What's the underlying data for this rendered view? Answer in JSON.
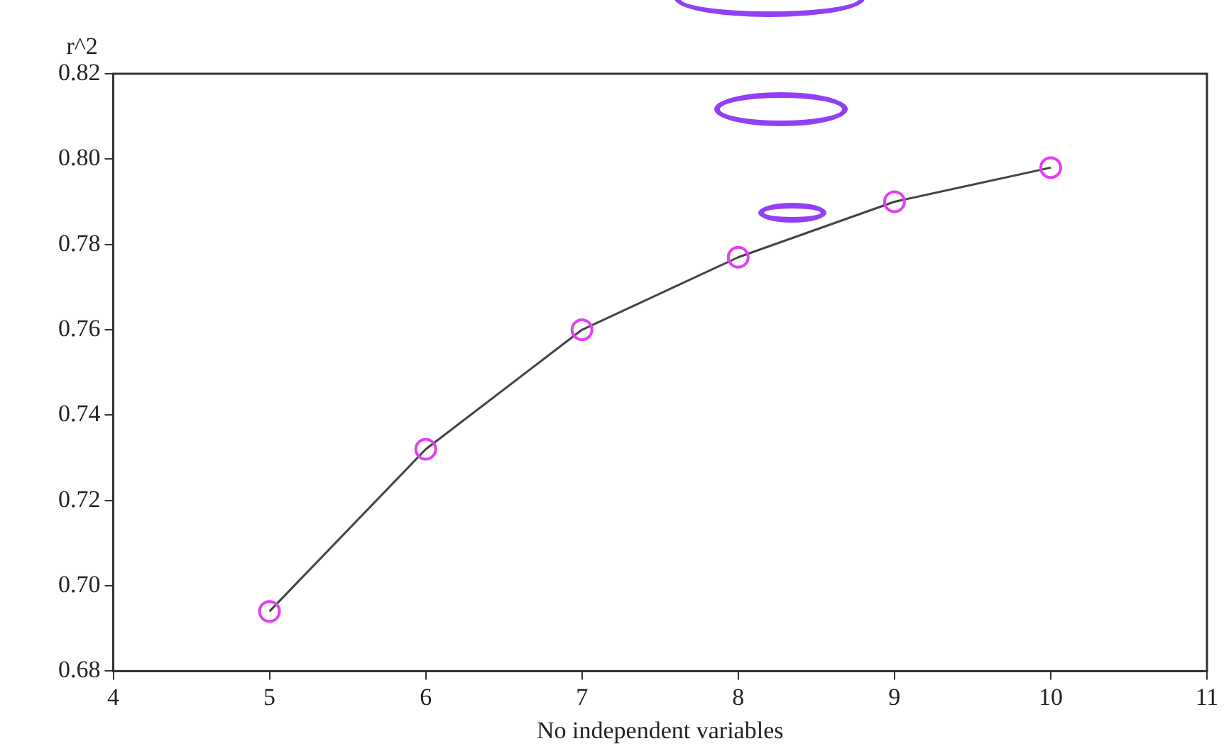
{
  "chart_data": {
    "type": "line",
    "xlabel": "No independent variables",
    "ylabel": "r^2",
    "x": [
      5,
      6,
      7,
      8,
      9,
      10
    ],
    "series": [
      {
        "color": "#e040f0",
        "values": [
          0.694,
          0.732,
          0.76,
          0.777,
          0.79,
          0.798
        ]
      }
    ],
    "xlim": [
      4,
      11
    ],
    "xticks": [
      4,
      5,
      6,
      7,
      8,
      9,
      10,
      11
    ],
    "ylim": [
      0.68,
      0.82
    ],
    "yticks": [
      {
        "value": 0.68,
        "label": "0.68"
      },
      {
        "value": 0.7,
        "label": "0.70"
      },
      {
        "value": 0.72,
        "label": "0.72"
      },
      {
        "value": 0.74,
        "label": "0.74"
      },
      {
        "value": 0.76,
        "label": "0.76"
      },
      {
        "value": 0.78,
        "label": "0.78"
      },
      {
        "value": 0.8,
        "label": "0.80"
      },
      {
        "value": 0.82,
        "label": "0.82"
      }
    ],
    "grid": false,
    "legend": false,
    "marker": "circle",
    "line_style": "solid"
  }
}
